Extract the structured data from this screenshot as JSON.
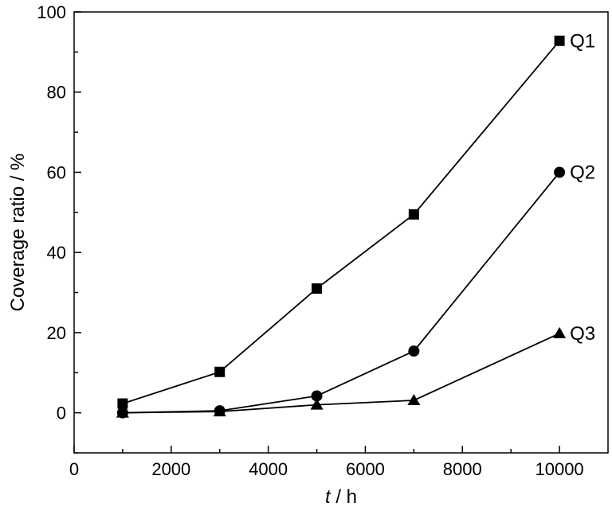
{
  "chart_data": {
    "type": "line",
    "title": "",
    "xlabel": {
      "var": "t",
      "rest": " / h"
    },
    "ylabel": "Coverage ratio / %",
    "xlim": [
      0,
      11000
    ],
    "ylim": [
      -10,
      100
    ],
    "xticks": [
      0,
      2000,
      4000,
      6000,
      8000,
      10000
    ],
    "yticks": [
      0,
      20,
      40,
      60,
      80,
      100
    ],
    "x_minor_ticks": [
      1000,
      3000,
      5000,
      7000,
      9000
    ],
    "y_minor_ticks": [
      -10,
      10,
      30,
      50,
      70,
      90
    ],
    "grid": false,
    "legend": "none",
    "series": [
      {
        "name": "Q1",
        "marker": "square",
        "x": [
          1000,
          3000,
          5000,
          7000,
          10000
        ],
        "y": [
          2.3,
          10.2,
          31.0,
          49.5,
          92.8
        ]
      },
      {
        "name": "Q2",
        "marker": "circle",
        "x": [
          1000,
          3000,
          5000,
          7000,
          10000
        ],
        "y": [
          0.0,
          0.5,
          4.2,
          15.4,
          60.0
        ]
      },
      {
        "name": "Q3",
        "marker": "triangle",
        "x": [
          1000,
          3000,
          5000,
          7000,
          10000
        ],
        "y": [
          0.0,
          0.3,
          2.0,
          3.1,
          19.8
        ]
      }
    ]
  }
}
